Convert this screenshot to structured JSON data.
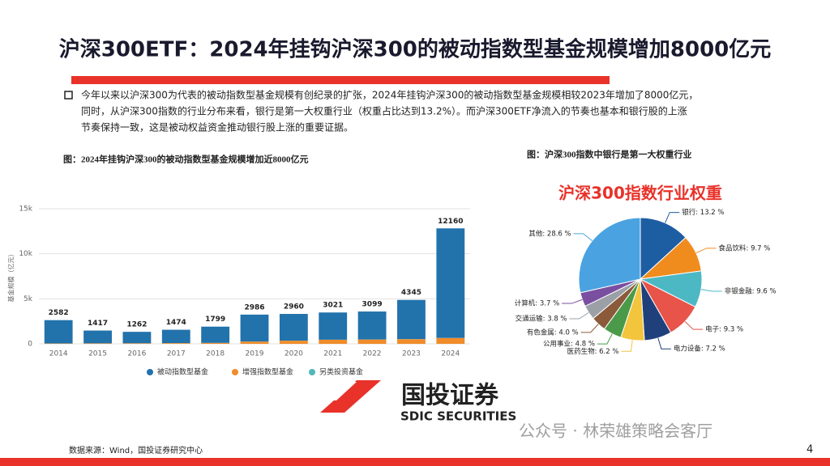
{
  "header": {
    "title": "沪深300ETF：2024年挂钩沪深300的被动指数型基金规模增加8000亿元"
  },
  "body": {
    "lines": [
      "今年以来以沪深300为代表的被动指数型基金规模有创纪录的扩张，2024年挂钩沪深300的被动指数型基金规模相较2023年增加了8000亿元，",
      "同时，从沪深300指数的行业分布来看，银行是第一大权重行业（权重占比达到13.2%）。而沪深300ETF净流入的节奏也基本和银行股的上涨",
      "节奏保持一致，这是被动权益资金推动银行股上涨的重要证据。"
    ]
  },
  "logo": {
    "name": "国投证券",
    "english": "SDIC SECURITIES"
  },
  "watermark": "公众号 · 林荣雄策略会客厅",
  "footer": {
    "source": "数据来源：Wind，国投证券研究中心",
    "page": "4"
  },
  "chart_data": [
    {
      "type": "bar",
      "stacked": true,
      "caption": "图：2024年挂钩沪深300的被动指数型基金规模增加近8000亿元",
      "y_label": "基金规模（亿元）",
      "categories": [
        "2014",
        "2015",
        "2016",
        "2017",
        "2018",
        "2019",
        "2020",
        "2021",
        "2022",
        "2023",
        "2024"
      ],
      "series": [
        {
          "name": "被动指数型基金",
          "color": "#2272ac",
          "values": [
            2582,
            1417,
            1262,
            1474,
            1799,
            2986,
            2960,
            3021,
            3099,
            4345,
            12160
          ]
        },
        {
          "name": "增强指数型基金",
          "color": "#f08c2a",
          "values": [
            40,
            50,
            60,
            80,
            100,
            250,
            350,
            450,
            480,
            520,
            650
          ]
        },
        {
          "name": "另类投资基金",
          "color": "#4fb8b8",
          "values": [
            10,
            10,
            10,
            10,
            10,
            10,
            10,
            10,
            10,
            10,
            10
          ]
        }
      ],
      "ylim": [
        0,
        15000
      ],
      "yticks": [
        0,
        {
          "value": 5000,
          "label": "5k"
        },
        {
          "value": 10000,
          "label": "10k"
        },
        {
          "value": 15000,
          "label": "15k"
        }
      ],
      "grid": true
    },
    {
      "type": "pie",
      "caption": "图：沪深300指数中银行是第一大权重行业",
      "title": "沪深300指数行业权重",
      "values": [
        13.2,
        9.7,
        9.6,
        9.3,
        7.2,
        6.2,
        4.8,
        4.0,
        3.8,
        3.7,
        28.6
      ],
      "value_labels": [
        "银行: 13.2 %",
        "食品饮料: 9.7 %",
        "非银金融: 9.6 %",
        "电子: 9.3 %",
        "电力设备: 7.2 %",
        "医药生物: 6.2 %",
        "公用事业: 4.8 %",
        "有色金属: 4.0 %",
        "交通运输: 3.8 %",
        "计算机: 3.7 %",
        "其他: 28.6 %"
      ],
      "colors": [
        "#1d5ea3",
        "#f08c1e",
        "#4cb8c4",
        "#e8534a",
        "#20407c",
        "#f2c53d",
        "#4a9a4a",
        "#8a5a3a",
        "#9aa0a6",
        "#7a4fa0",
        "#4aa3e0"
      ]
    }
  ]
}
